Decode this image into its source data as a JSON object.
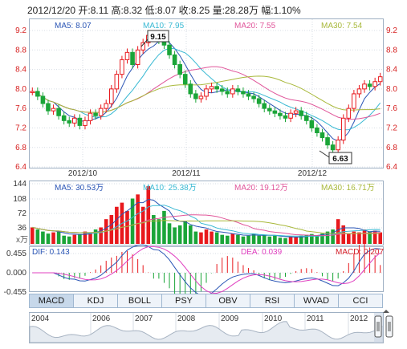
{
  "header": {
    "summary": "2012/12/20 开:8.11 高:8.32 低:8.07 收:8.25 量:28.28万 幅:1.10%"
  },
  "price_panel": {
    "ma_labels": [
      {
        "text": "MA5: 8.07",
        "color": "#2a55b5"
      },
      {
        "text": "MA10: 7.95",
        "color": "#39b9d3"
      },
      {
        "text": "MA20: 7.55",
        "color": "#e0569a"
      },
      {
        "text": "MA30: 7.54",
        "color": "#a8b83a"
      }
    ],
    "y_ticks": [
      "9.2",
      "8.8",
      "8.4",
      "8.0",
      "7.6",
      "7.2",
      "6.8",
      "6.4"
    ],
    "x_ticks": [
      "2012/10",
      "2012/11",
      "2012/12"
    ],
    "high_callout": "9.15",
    "low_callout": "6.63"
  },
  "volume_panel": {
    "ma_labels": [
      {
        "text": "MA5: 30.53万",
        "color": "#2a55b5"
      },
      {
        "text": "MA10: 25.38万",
        "color": "#39b9d3"
      },
      {
        "text": "MA20: 19.12万",
        "color": "#e0569a"
      },
      {
        "text": "MA30: 16.71万",
        "color": "#a8b83a"
      }
    ],
    "y_ticks": [
      "144",
      "108",
      "72",
      "36"
    ],
    "unit": "x万"
  },
  "macd_panel": {
    "labels": [
      {
        "text": "DIF: 0.143",
        "color": "#2a55b5"
      },
      {
        "text": "DEA: 0.039",
        "color": "#e040c0"
      },
      {
        "text": "MACD: 0.207",
        "color": "#d4202a"
      }
    ],
    "y_ticks": [
      "0.455",
      "0.000",
      "-0.455"
    ]
  },
  "tabs": [
    "MACD",
    "KDJ",
    "BOLL",
    "PSY",
    "OBV",
    "RSI",
    "WVAD",
    "CCI"
  ],
  "timeline": {
    "years": [
      "2004",
      "2006",
      "2007",
      "2008",
      "2009",
      "2010",
      "2011",
      "2012"
    ]
  },
  "colors": {
    "up": "#e8191d",
    "down": "#1aa538",
    "grid": "#d7dde5",
    "axis": "#9fb0c3",
    "price_label": "#d61e1e"
  }
}
